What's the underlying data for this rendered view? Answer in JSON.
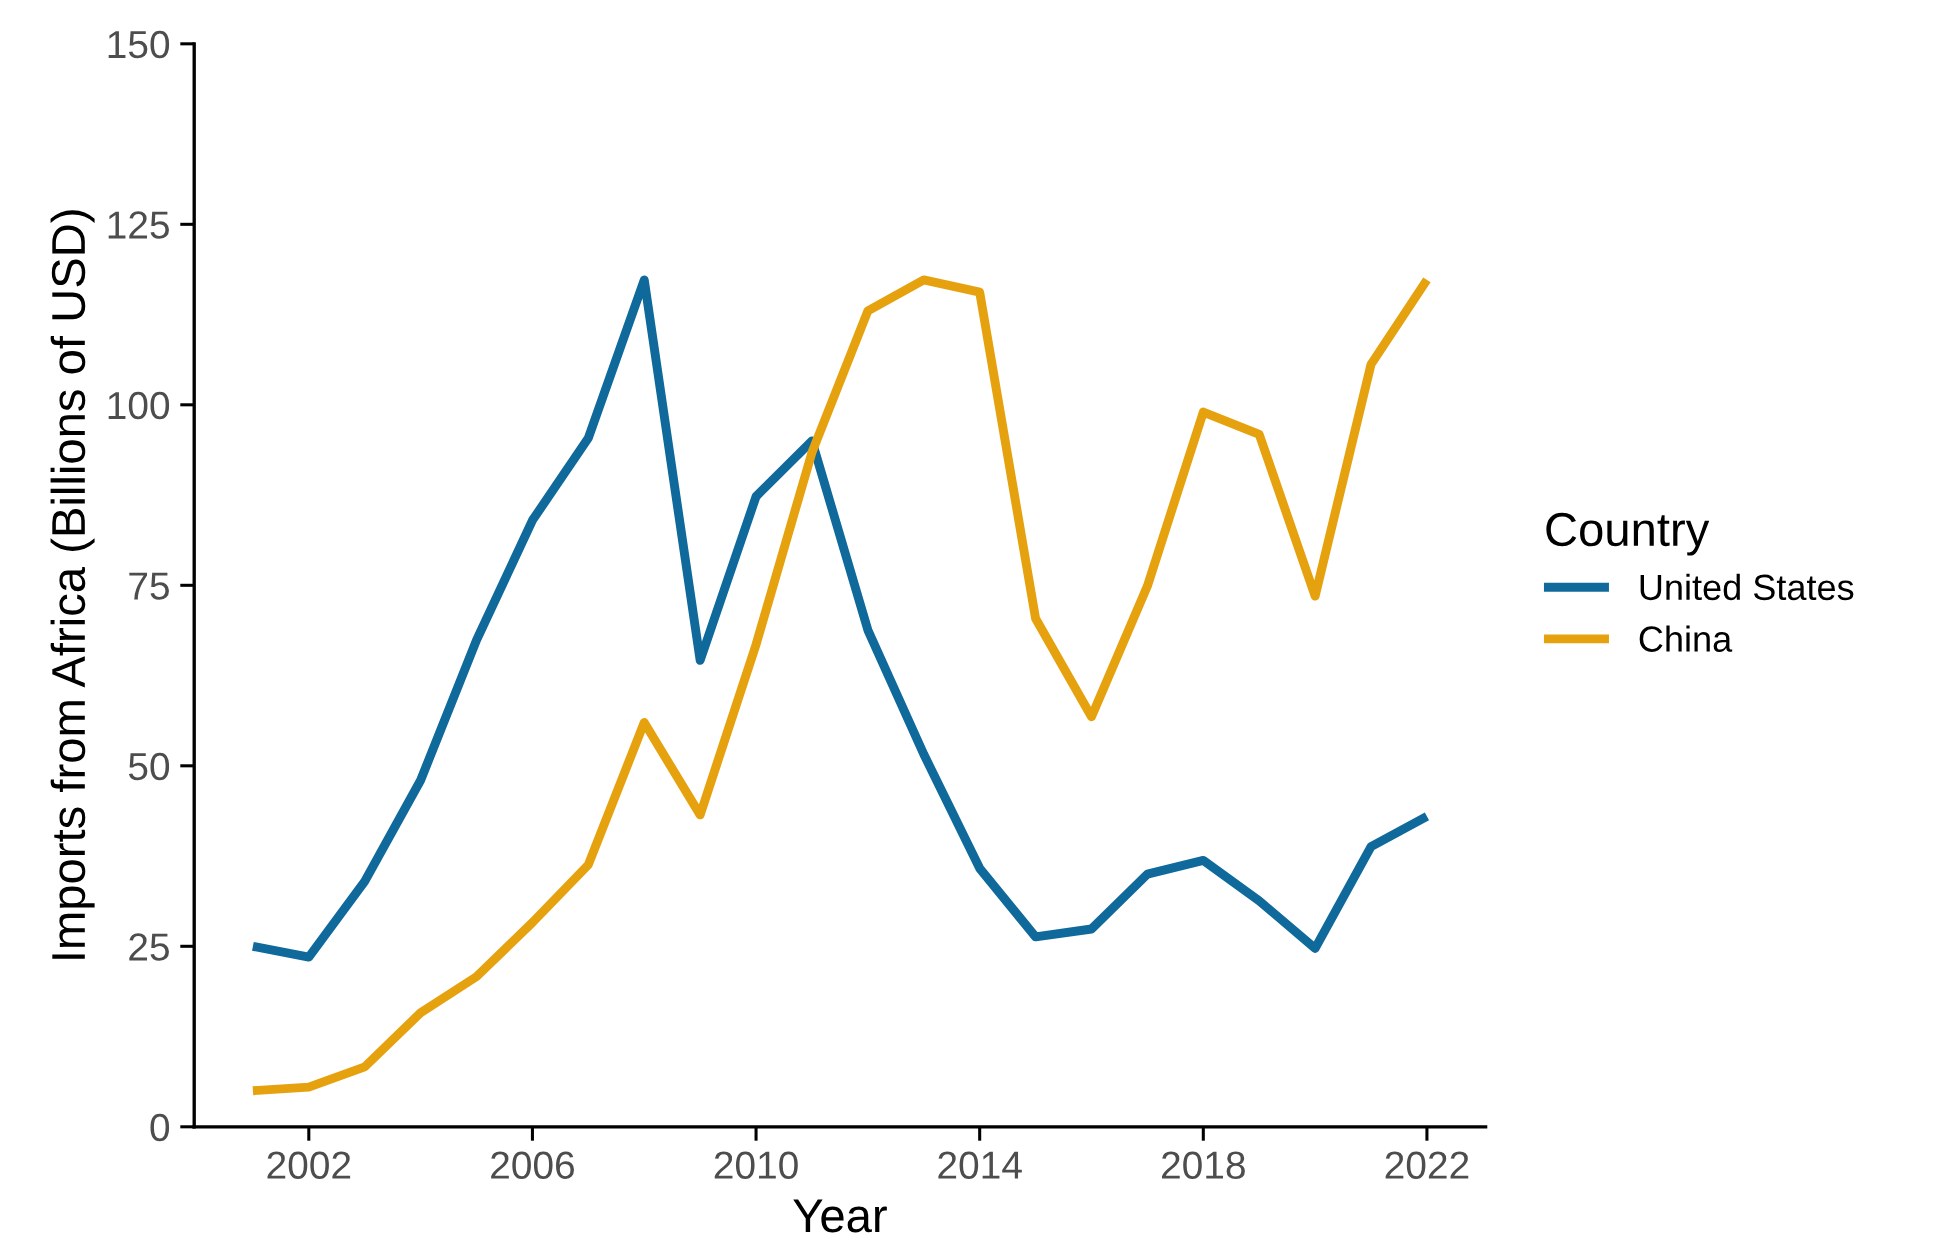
{
  "chart_data": {
    "type": "line",
    "xlabel": "Year",
    "ylabel": "Imports from Africa (Billions of USD)",
    "legend_title": "Country",
    "x": [
      2001,
      2002,
      2003,
      2004,
      2005,
      2006,
      2007,
      2008,
      2009,
      2010,
      2011,
      2012,
      2013,
      2014,
      2015,
      2016,
      2017,
      2018,
      2019,
      2020,
      2021,
      2022
    ],
    "series": [
      {
        "name": "United States",
        "color": "#10699b",
        "values": [
          25,
          23.5,
          34,
          48,
          67.4,
          84,
          95.4,
          117.3,
          64.6,
          87.3,
          95,
          68.8,
          51.6,
          35.8,
          26.3,
          27.4,
          35,
          36.9,
          31.3,
          24.7,
          38.8,
          43
        ]
      },
      {
        "name": "China",
        "color": "#e6a20e",
        "values": [
          5,
          5.5,
          8.3,
          15.8,
          20.8,
          28.3,
          36.3,
          56,
          43.2,
          66.8,
          93.4,
          113,
          117.3,
          115.6,
          70.4,
          56.8,
          74.9,
          99,
          95.9,
          73.5,
          105.6,
          117.3
        ]
      }
    ],
    "xlim": [
      1999.95,
      2023.05
    ],
    "ylim": [
      0,
      150
    ],
    "xticks": [
      2002,
      2006,
      2010,
      2014,
      2018,
      2022
    ],
    "yticks": [
      0,
      25,
      50,
      75,
      100,
      125,
      150
    ],
    "grid": false,
    "legend": "right",
    "marker": "none",
    "line_style": "solid"
  }
}
